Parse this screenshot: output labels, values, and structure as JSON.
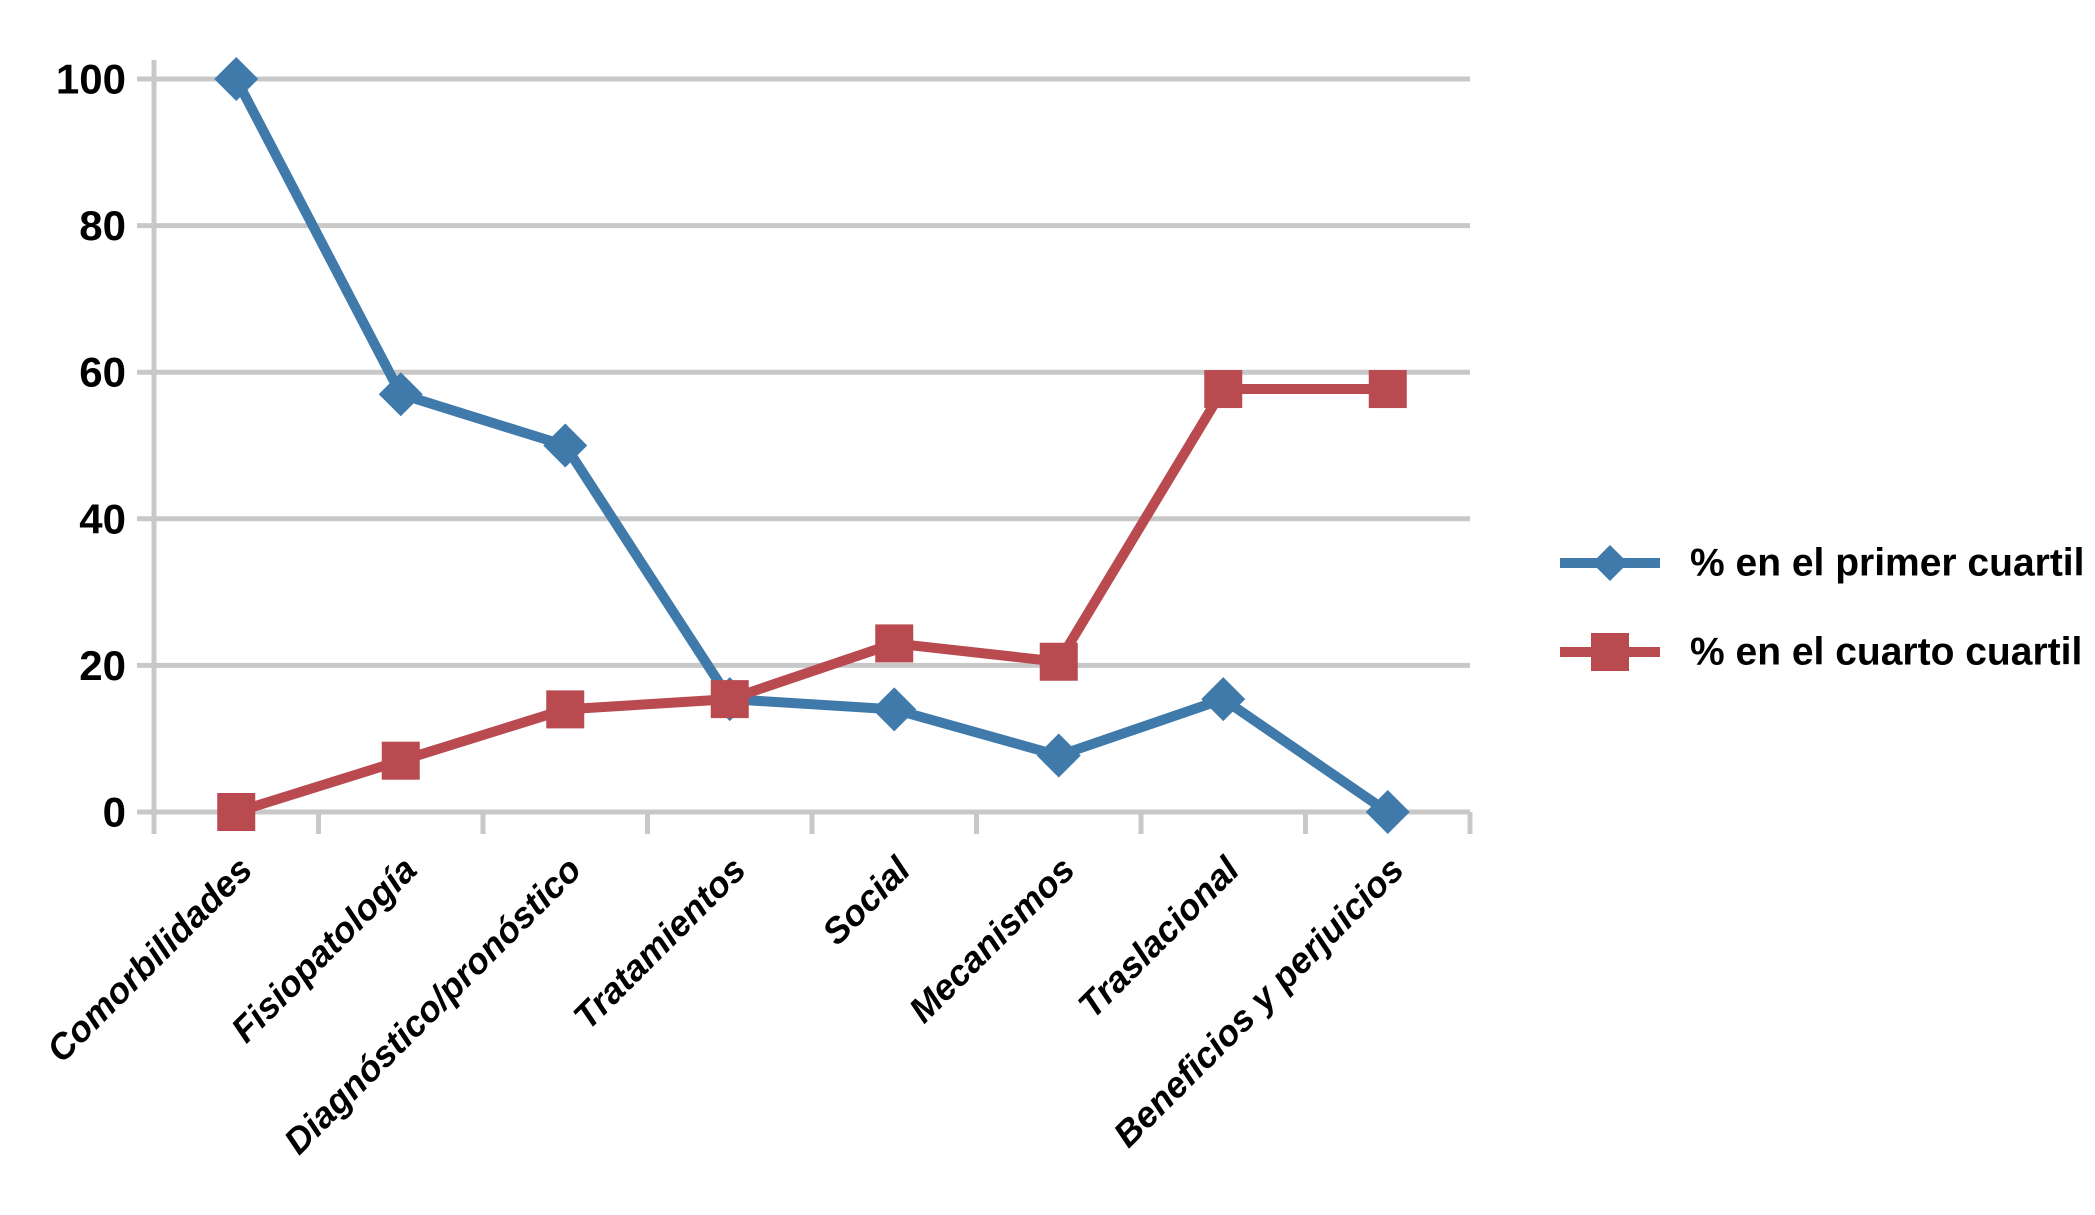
{
  "chart_data": {
    "type": "line",
    "title": "",
    "xlabel": "",
    "ylabel": "",
    "categories": [
      "Comorbilidades",
      "Fisiopatología",
      "Diagnóstico/pronóstico",
      "Tratamientos",
      "Social",
      "Mecanismos",
      "Traslacional",
      "Beneficios y perjuicios"
    ],
    "series": [
      {
        "name": "% en el primer cuartil",
        "marker": "diamond",
        "color": "#3F7AAB",
        "values": [
          100,
          57,
          50,
          15.4,
          14,
          7.7,
          15.4,
          0
        ]
      },
      {
        "name": "% en el cuarto cuartil",
        "marker": "square",
        "color": "#B84A50",
        "values": [
          0,
          7,
          14,
          15.4,
          23,
          20.5,
          57.7,
          57.7
        ]
      }
    ],
    "ylim": [
      0,
      100
    ],
    "yticks": [
      0,
      20,
      40,
      60,
      80,
      100
    ],
    "grid": true,
    "gridline_color": "#C8C8C8",
    "axis_color": "#C8C8C8",
    "text_color": "#000000",
    "background": "#FFFFFF",
    "legend_position": "right"
  }
}
